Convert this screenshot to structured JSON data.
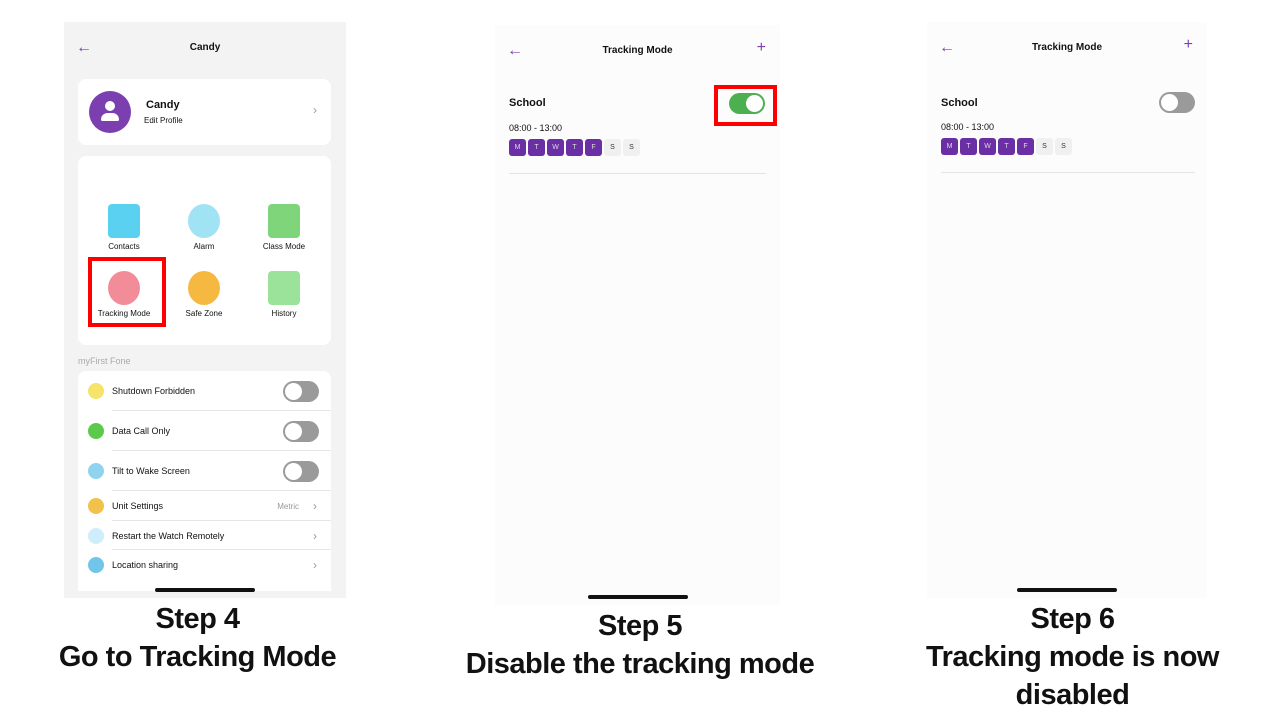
{
  "step4": {
    "header_title": "Candy",
    "profile_name": "Candy",
    "profile_sub": "Edit Profile",
    "grid": [
      {
        "label": "Contacts",
        "icon": "contacts-icon",
        "color": "#5ad1f0"
      },
      {
        "label": "Alarm",
        "icon": "alarm-clock-icon",
        "color": "#9fe3f5"
      },
      {
        "label": "Class Mode",
        "icon": "class-mode-icon",
        "color": "#7fd67a"
      },
      {
        "label": "Tracking Mode",
        "icon": "location-pin-icon",
        "color": "#f28c98"
      },
      {
        "label": "Safe Zone",
        "icon": "safe-zone-pin-icon",
        "color": "#f5b942"
      },
      {
        "label": "History",
        "icon": "map-icon",
        "color": "#9be39a"
      }
    ],
    "section_label": "myFirst Fone",
    "settings": [
      {
        "label": "Shutdown Forbidden",
        "icon": "power-icon",
        "type": "toggle",
        "on": false
      },
      {
        "label": "Data Call Only",
        "icon": "phone-data-icon",
        "type": "toggle",
        "on": false
      },
      {
        "label": "Tilt to Wake Screen",
        "icon": "watch-icon",
        "type": "toggle",
        "on": false
      },
      {
        "label": "Unit Settings",
        "icon": "ruler-icon",
        "type": "link",
        "value": "Metric"
      },
      {
        "label": "Restart the Watch Remotely",
        "icon": "restart-icon",
        "type": "link"
      },
      {
        "label": "Location sharing",
        "icon": "location-sharing-icon",
        "type": "link"
      }
    ]
  },
  "step5": {
    "header_title": "Tracking Mode",
    "schedule_name": "School",
    "time": "08:00 - 13:00",
    "enabled": true
  },
  "step6": {
    "header_title": "Tracking Mode",
    "schedule_name": "School",
    "time": "08:00 - 13:00",
    "enabled": false
  },
  "days": [
    {
      "l": "M",
      "on": true
    },
    {
      "l": "T",
      "on": true
    },
    {
      "l": "W",
      "on": true
    },
    {
      "l": "T",
      "on": true
    },
    {
      "l": "F",
      "on": true
    },
    {
      "l": "S",
      "on": false
    },
    {
      "l": "S",
      "on": false
    }
  ],
  "captions": {
    "step4": [
      "Step 4",
      "Go to Tracking Mode"
    ],
    "step5": [
      "Step 5",
      "Disable the tracking mode"
    ],
    "step6": [
      "Step 6",
      "Tracking mode is now",
      "disabled"
    ]
  },
  "colors": {
    "accent": "#7b3fb0",
    "toggle_on": "#4caf50",
    "highlight": "#ff0000"
  }
}
